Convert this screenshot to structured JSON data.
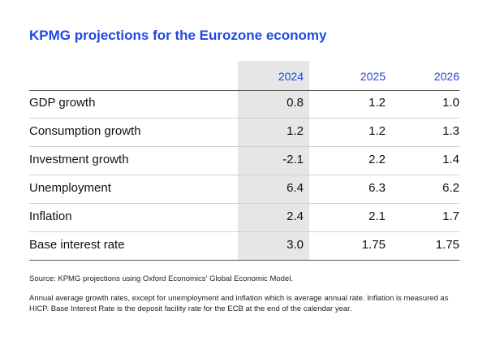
{
  "header": {
    "title": "KPMG projections for the Eurozone economy"
  },
  "table": {
    "columns": [
      "2024",
      "2025",
      "2026"
    ],
    "rows": [
      [
        "GDP growth",
        "0.8",
        "1.2",
        "1.0"
      ],
      [
        "Consumption growth",
        "1.2",
        "1.2",
        "1.3"
      ],
      [
        "Investment growth",
        "-2.1",
        "2.2",
        "1.4"
      ],
      [
        "Unemployment",
        "6.4",
        "6.3",
        "6.2"
      ],
      [
        "Inflation",
        "2.4",
        "2.1",
        "1.7"
      ],
      [
        "Base interest rate",
        "3.0",
        "1.75",
        "1.75"
      ]
    ]
  },
  "footer": {
    "source": "Source: KPMG projections using Oxford Economics' Global Economic Model.",
    "note": "Annual average growth rates, except for unemployment and inflation which is average annual rate. Inflation is measured as HICP. Base Interest Rate is the deposit facility rate for the ECB at the end of the calendar year."
  }
}
